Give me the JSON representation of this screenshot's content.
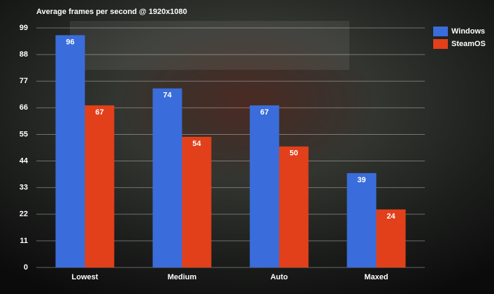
{
  "chart_data": {
    "type": "bar",
    "title": "Average frames per second @ 1920x1080",
    "categories": [
      "Lowest",
      "Medium",
      "Auto",
      "Maxed"
    ],
    "series": [
      {
        "name": "Windows",
        "color": "#3a6ddb",
        "values": [
          96,
          74,
          67,
          39
        ]
      },
      {
        "name": "SteamOS",
        "color": "#e2401a",
        "values": [
          67,
          54,
          50,
          24
        ]
      }
    ],
    "ylim": [
      0,
      99
    ],
    "yticks": [
      0,
      11,
      22,
      33,
      44,
      55,
      66,
      77,
      88,
      99
    ],
    "grid": true,
    "legend": "top-right"
  }
}
